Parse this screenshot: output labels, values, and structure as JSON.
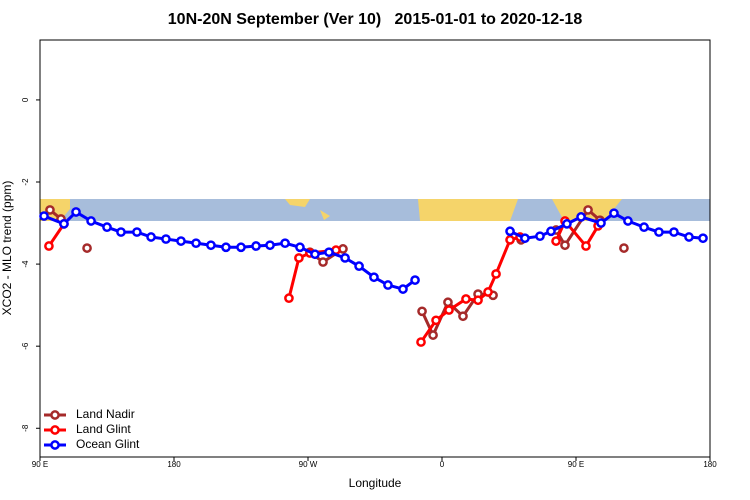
{
  "chart_data": {
    "type": "line",
    "title": "10N-20N September (Ver 10)   2015-01-01 to 2020-12-18",
    "xlabel": "Longitude",
    "ylabel": "XCO2 - MLO trend (ppm)",
    "xlim": [
      90,
      540
    ],
    "ylim": [
      -8.7,
      1.46
    ],
    "xticks": [
      {
        "value": 90,
        "label": "90 E"
      },
      180,
      {
        "value": 270,
        "label": "90 W"
      },
      {
        "value": 360,
        "label": "0"
      },
      {
        "value": 450,
        "label": "90 E"
      },
      {
        "value": 540,
        "label": "180"
      }
    ],
    "yticks": [
      0,
      -2,
      -4,
      -6,
      -8
    ],
    "legend": "bottomleft",
    "series": [
      {
        "name": "Land Nadir",
        "color": "#a52a2a",
        "x": [
          96.7,
          104.1,
          null,
          121.6,
          null,
          271.3,
          280.1,
          293.5,
          null,
          346.6,
          354.0,
          364.0,
          374.1,
          384.2,
          394.3,
          null,
          413.1,
          null,
          436.6,
          442.6,
          458.1,
          466.1,
          null,
          482.2
        ],
        "values": [
          -2.68,
          -2.9,
          null,
          -3.61,
          null,
          -3.71,
          -3.95,
          -3.63,
          null,
          -5.15,
          -5.73,
          -4.93,
          -5.27,
          -4.73,
          -4.76,
          null,
          -3.41,
          null,
          -3.17,
          -3.54,
          -2.68,
          -2.93,
          null,
          -3.61
        ]
      },
      {
        "name": "Land Glint",
        "color": "#ff0000",
        "x": [
          96.0,
          106.1,
          null,
          257.2,
          263.9,
          271.3,
          288.8,
          null,
          345.9,
          356.0,
          364.7,
          376.1,
          384.2,
          390.9,
          396.3,
          405.7,
          412.4,
          null,
          436.6,
          442.6,
          456.7,
          464.8
        ],
        "values": [
          -3.56,
          -3.02,
          null,
          -4.83,
          -3.85,
          -3.73,
          -3.66,
          null,
          -5.9,
          -5.37,
          -5.12,
          -4.85,
          -4.88,
          -4.68,
          -4.24,
          -3.41,
          -3.34,
          null,
          -3.44,
          -2.95,
          -3.56,
          -3.07
        ]
      },
      {
        "name": "Ocean Glint",
        "color": "#0000ff",
        "x": [
          92.7,
          106.1,
          114.2,
          124.3,
          135.0,
          144.4,
          155.1,
          164.6,
          174.6,
          184.7,
          194.8,
          204.8,
          214.9,
          225.0,
          235.1,
          244.5,
          254.6,
          264.6,
          274.7,
          284.1,
          294.9,
          304.3,
          314.3,
          323.7,
          333.8,
          341.9,
          null,
          405.7,
          415.7,
          425.8,
          433.2,
          443.9,
          453.4,
          466.8,
          475.5,
          484.9,
          495.7,
          505.7,
          515.8,
          525.9,
          535.3
        ],
        "values": [
          -2.83,
          -3.02,
          -2.73,
          -2.95,
          -3.1,
          -3.22,
          -3.22,
          -3.34,
          -3.39,
          -3.44,
          -3.49,
          -3.54,
          -3.59,
          -3.59,
          -3.56,
          -3.54,
          -3.49,
          -3.59,
          -3.76,
          -3.71,
          -3.85,
          -4.05,
          -4.32,
          -4.51,
          -4.61,
          -4.39,
          null,
          -3.2,
          -3.37,
          -3.32,
          -3.2,
          -3.02,
          -2.85,
          -3.0,
          -2.76,
          -2.95,
          -3.1,
          -3.22,
          -3.22,
          -3.34,
          -3.37
        ]
      }
    ]
  }
}
